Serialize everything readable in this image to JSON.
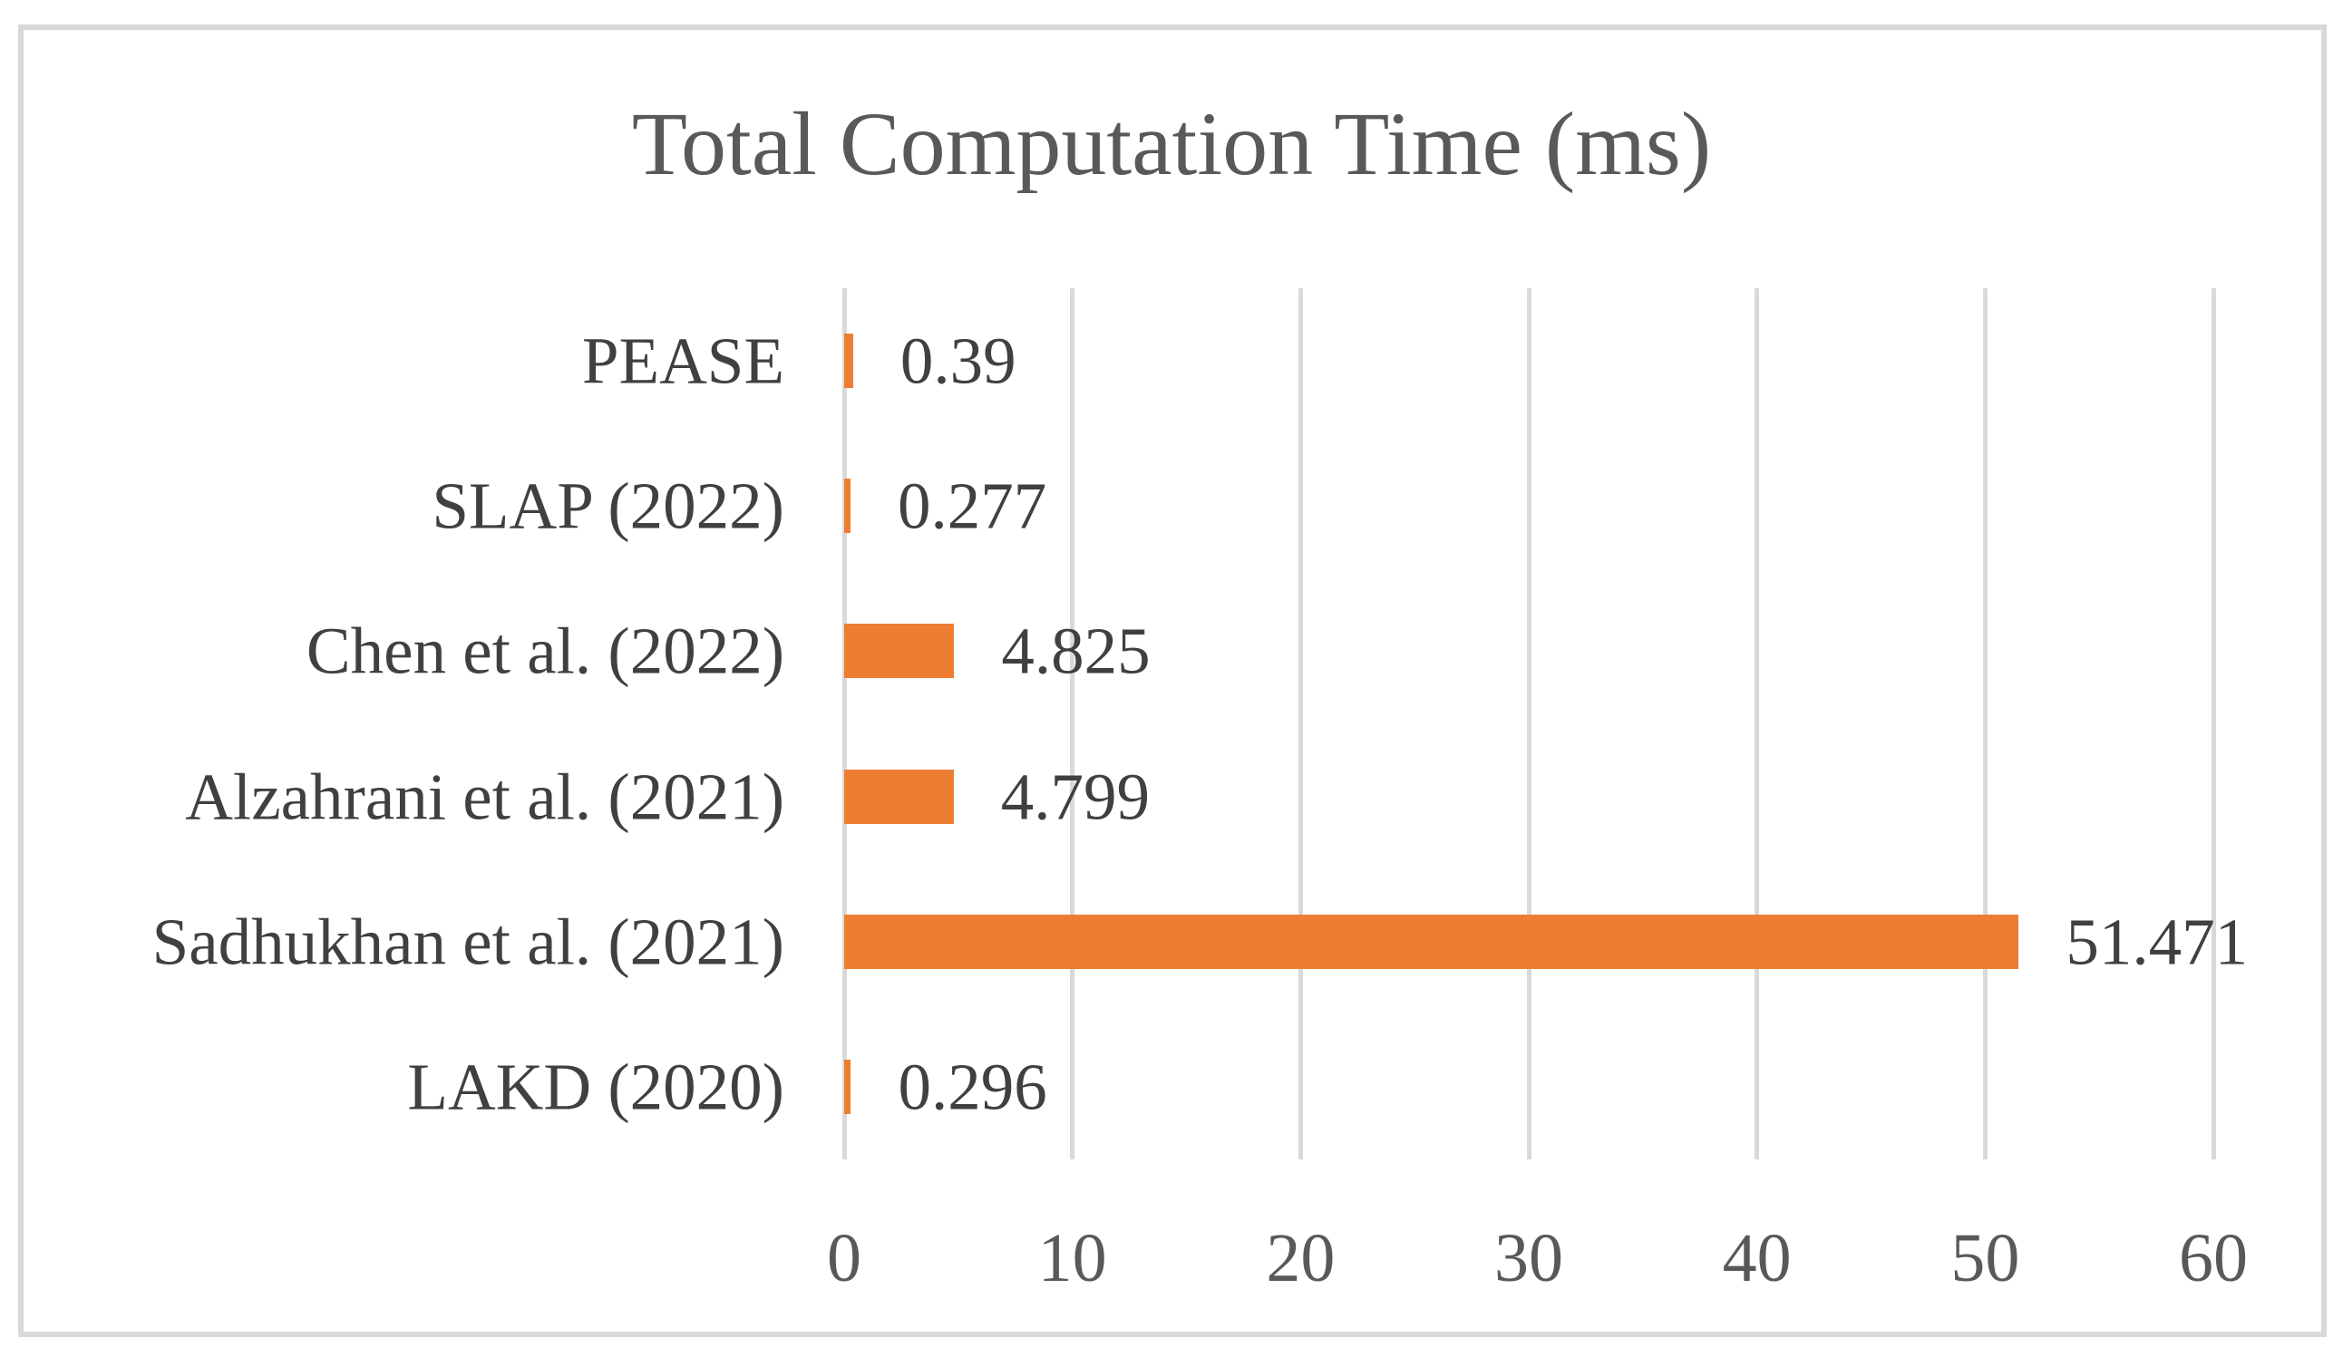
{
  "chart_data": {
    "type": "bar",
    "orientation": "horizontal",
    "title": "Total Computation Time (ms)",
    "categories": [
      "PEASE",
      "SLAP (2022)",
      "Chen et al. (2022)",
      "Alzahrani et al. (2021)",
      "Sadhukhan et al. (2021)",
      "LAKD (2020)"
    ],
    "values": [
      0.39,
      0.277,
      4.825,
      4.799,
      51.471,
      0.296
    ],
    "data_labels": [
      "0.39",
      "0.277",
      "4.825",
      "4.799",
      "51.471",
      "0.296"
    ],
    "xlabel": "",
    "ylabel": "",
    "xlim": [
      0,
      60
    ],
    "xticks": [
      "0",
      "10",
      "20",
      "30",
      "40",
      "50",
      "60"
    ],
    "grid": true,
    "legend_position": "none",
    "colors": {
      "bar": "#ED7D31",
      "gridline": "#D9D9D9",
      "frame_border": "#D9D9D9",
      "title_text": "#595959",
      "tick_text": "#595959",
      "label_text": "#404040",
      "background": "#FFFFFF"
    }
  }
}
